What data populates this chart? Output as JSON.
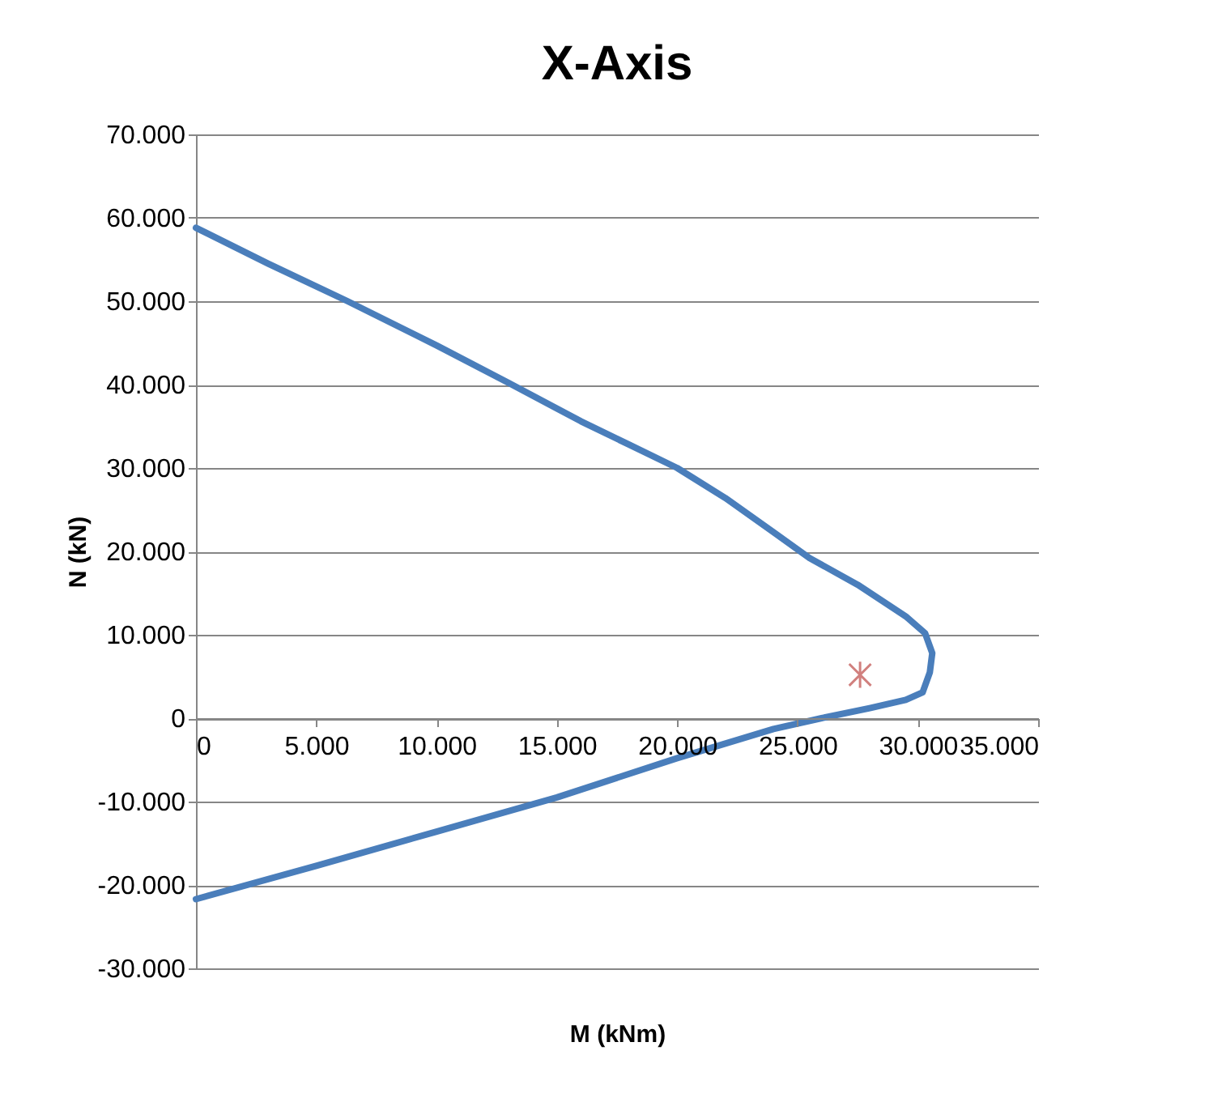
{
  "chart_data": {
    "type": "line",
    "title": "X-Axis",
    "xlabel": "M (kNm)",
    "ylabel": "N (kN)",
    "series": [
      {
        "color": "#4a7ebb",
        "marker": "none",
        "x": [
          0,
          3000,
          6300,
          10000,
          13000,
          16000,
          18000,
          20000,
          22000,
          24000,
          25500,
          27500,
          29500,
          30300,
          30600,
          30500,
          30200,
          29500,
          28000,
          26000,
          24000,
          20000,
          15000,
          10000,
          5000,
          0
        ],
        "values": [
          58800,
          54500,
          50000,
          44700,
          40200,
          35600,
          32800,
          30000,
          26400,
          22300,
          19200,
          16000,
          12200,
          10200,
          7800,
          5500,
          3100,
          2200,
          1200,
          0,
          -1300,
          -4800,
          -9500,
          -13600,
          -17700,
          -21700
        ]
      },
      {
        "type": "scatter",
        "color": "#be4b48",
        "marker": "cross",
        "x": [
          27600
        ],
        "values": [
          5200
        ]
      }
    ],
    "xlim": [
      0,
      35000
    ],
    "xticks": [
      {
        "value": 0,
        "label": "0"
      },
      {
        "value": 5000,
        "label": "5.000"
      },
      {
        "value": 10000,
        "label": "10.000"
      },
      {
        "value": 15000,
        "label": "15.000"
      },
      {
        "value": 20000,
        "label": "20.000"
      },
      {
        "value": 25000,
        "label": "25.000"
      },
      {
        "value": 30000,
        "label": "30.000"
      },
      {
        "value": 35000,
        "label": "35.000"
      }
    ],
    "ylim": [
      -30000,
      70000
    ],
    "yticks": [
      {
        "value": -30000,
        "label": "-30.000"
      },
      {
        "value": -20000,
        "label": "-20.000"
      },
      {
        "value": -10000,
        "label": "-10.000"
      },
      {
        "value": 0,
        "label": "0"
      },
      {
        "value": 10000,
        "label": "10.000"
      },
      {
        "value": 20000,
        "label": "20.000"
      },
      {
        "value": 30000,
        "label": "30.000"
      },
      {
        "value": 40000,
        "label": "40.000"
      },
      {
        "value": 50000,
        "label": "50.000"
      },
      {
        "value": 60000,
        "label": "60.000"
      },
      {
        "value": 70000,
        "label": "70.000"
      }
    ],
    "grid": "y"
  }
}
